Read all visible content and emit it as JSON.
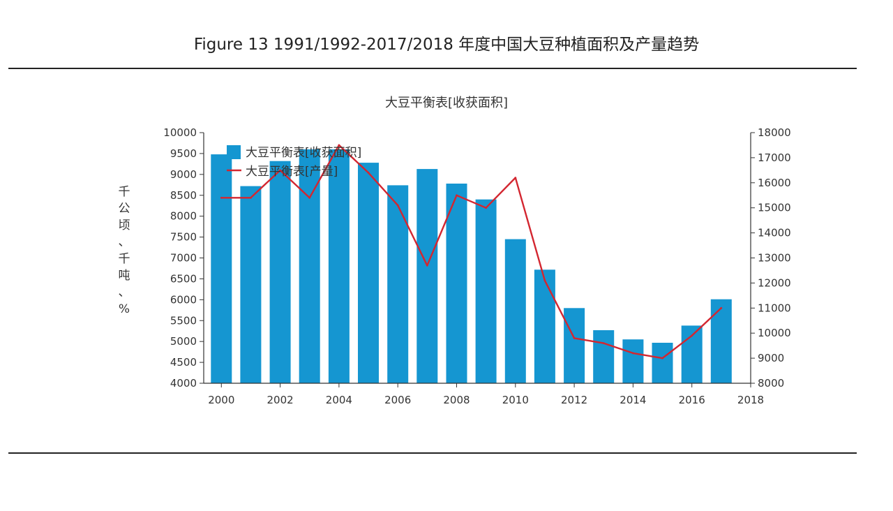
{
  "figure_title": "Figure 13 1991/1992-2017/2018 年度中国大豆种植面积及产量趋势",
  "chart_data": {
    "type": "bar",
    "title": "大豆平衡表[收获面积]",
    "ylabel": "千公顷、千吨、%",
    "x": [
      2000,
      2001,
      2002,
      2003,
      2004,
      2005,
      2006,
      2007,
      2008,
      2009,
      2010,
      2011,
      2012,
      2013,
      2014,
      2015,
      2016,
      2017
    ],
    "xticks": [
      "2000",
      "2002",
      "2004",
      "2006",
      "2008",
      "2010",
      "2012",
      "2014",
      "2016",
      "2018"
    ],
    "xlim": [
      1999.4,
      2018
    ],
    "ylim_left": [
      4000,
      10000
    ],
    "ylim_right": [
      8000,
      18000
    ],
    "yticks_left": [
      "4000",
      "4500",
      "5000",
      "5500",
      "6000",
      "6500",
      "7000",
      "7500",
      "8000",
      "8500",
      "9000",
      "9500",
      "10000"
    ],
    "yticks_right": [
      "8000",
      "9000",
      "10000",
      "11000",
      "12000",
      "13000",
      "14000",
      "15000",
      "16000",
      "17000",
      "18000"
    ],
    "legend_position": "top-left",
    "series": [
      {
        "name": "大豆平衡表[收获面积]",
        "type": "bar",
        "axis": "left",
        "color": "#1596d1",
        "values": [
          9480,
          8720,
          9320,
          9600,
          9600,
          9280,
          8740,
          9130,
          8780,
          8400,
          7450,
          6720,
          5800,
          5270,
          5050,
          4970,
          5380,
          6010
        ]
      },
      {
        "name": "大豆平衡表[产量]",
        "type": "line",
        "axis": "right",
        "color": "#d32630",
        "values": [
          15400,
          15400,
          16500,
          15400,
          17500,
          16400,
          15100,
          12700,
          15500,
          15000,
          16200,
          12100,
          9800,
          9600,
          9200,
          9000,
          9900,
          11000
        ]
      }
    ]
  }
}
